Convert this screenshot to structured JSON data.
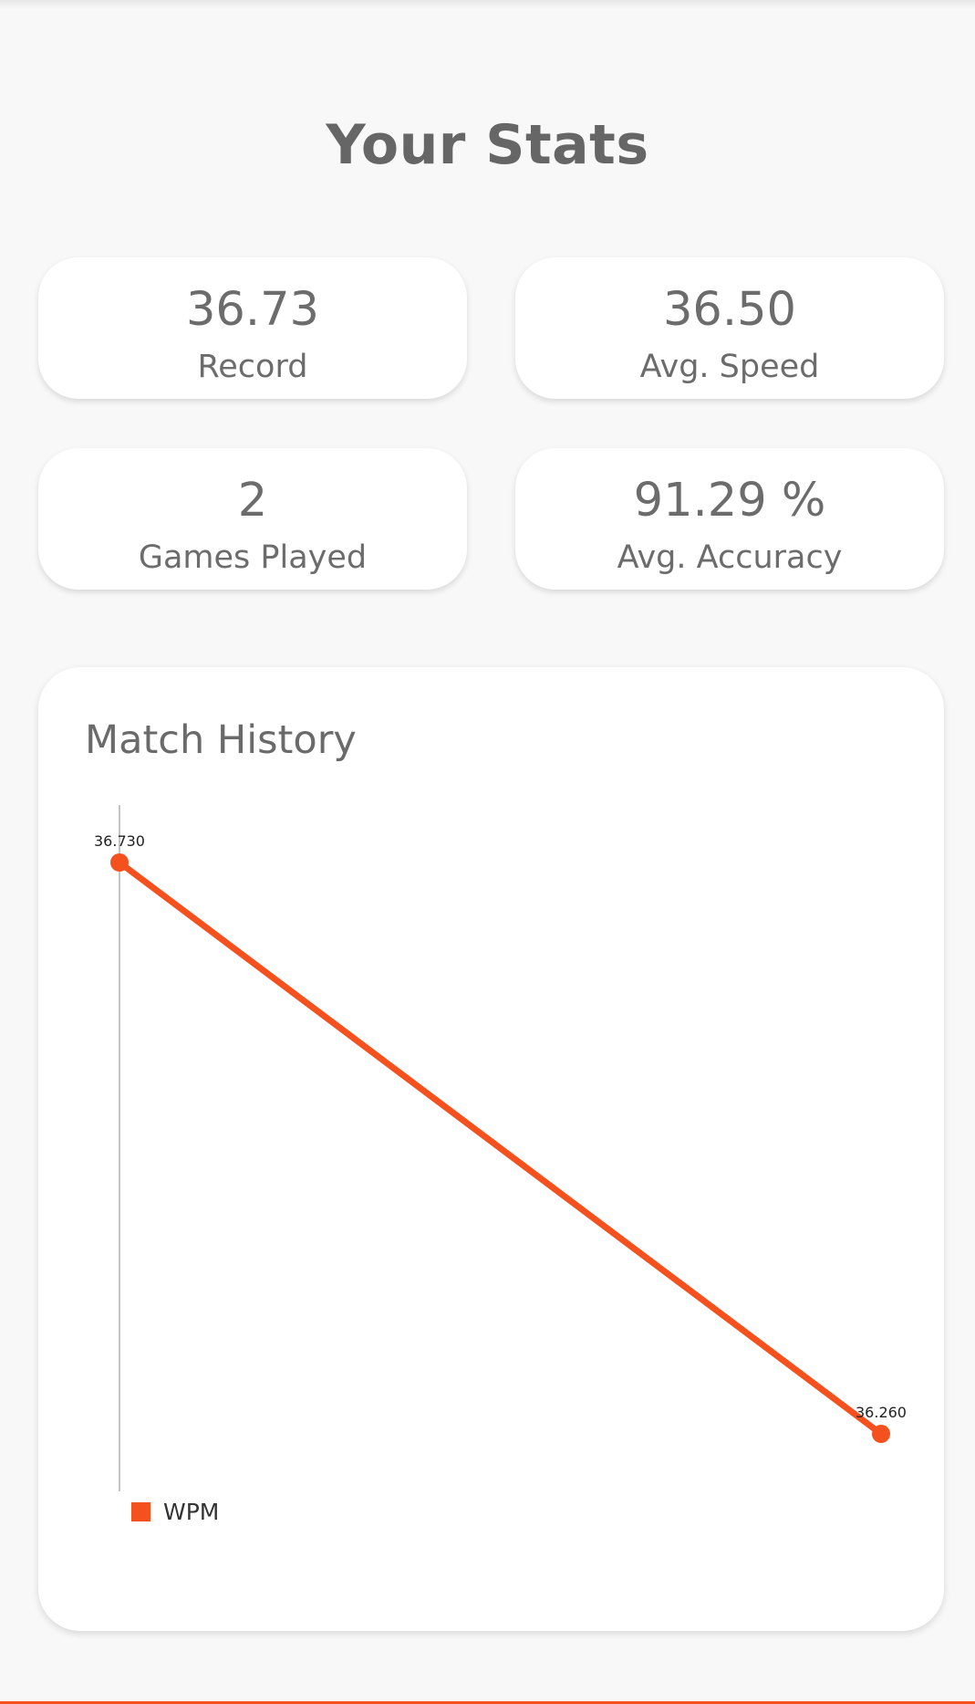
{
  "page": {
    "title": "Your Stats"
  },
  "stats": {
    "record": {
      "value": "36.73",
      "label": "Record"
    },
    "avg_speed": {
      "value": "36.50",
      "label": "Avg. Speed"
    },
    "games_played": {
      "value": "2",
      "label": "Games Played"
    },
    "avg_accuracy": {
      "value": "91.29 %",
      "label": "Avg. Accuracy"
    }
  },
  "history": {
    "title": "Match History"
  },
  "colors": {
    "accent": "#f4511e",
    "card_bg": "#ffffff",
    "page_bg": "#f8f8f8",
    "text": "#6a6a6a"
  },
  "chart_data": {
    "type": "line",
    "x": [
      1,
      2
    ],
    "series": [
      {
        "name": "WPM",
        "values": [
          36.73,
          36.26
        ],
        "labels": [
          "36.730",
          "36.260"
        ],
        "color": "#f4511e"
      }
    ],
    "title": "Match History",
    "xlabel": "",
    "ylabel": "",
    "ylim": [
      36.26,
      36.73
    ],
    "grid": false,
    "legend": "bottom-left"
  }
}
